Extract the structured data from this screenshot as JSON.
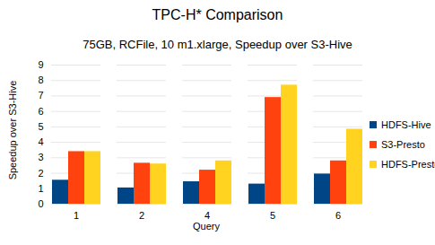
{
  "chart_data": {
    "type": "bar",
    "title": "TPC-H* Comparison",
    "subtitle": "75GB, RCFile, 10 m1.xlarge, Speedup over S3-Hive",
    "x_label": "Query",
    "y_label": "Speedup over S3-Hive",
    "categories": [
      "1",
      "2",
      "4",
      "5",
      "6"
    ],
    "series": [
      {
        "name": "HDFS-Hive",
        "color": "#004586",
        "values": [
          1.55,
          1.05,
          1.45,
          1.3,
          1.95
        ]
      },
      {
        "name": "S3-Presto",
        "color": "#ff420e",
        "values": [
          3.4,
          2.65,
          2.2,
          6.9,
          2.8
        ]
      },
      {
        "name": "HDFS-Presto",
        "color": "#ffd320",
        "values": [
          3.4,
          2.6,
          2.8,
          7.7,
          4.85
        ]
      }
    ],
    "ylim": [
      0,
      9
    ],
    "yticks": [
      0,
      1,
      2,
      3,
      4,
      5,
      6,
      7,
      8,
      9
    ],
    "grid": true,
    "legend": "right"
  }
}
